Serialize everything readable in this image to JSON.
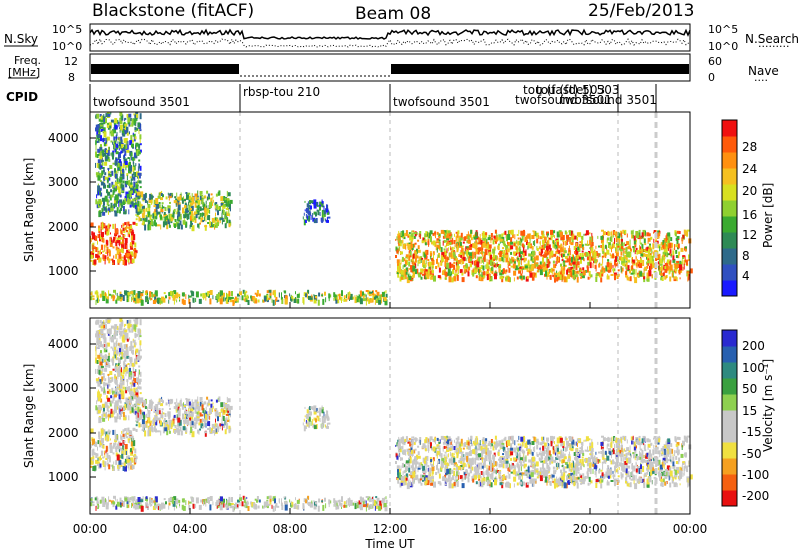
{
  "header": {
    "station": "Blackstone (fitACF)",
    "beam": "Beam 08",
    "date": "25/Feb/2013"
  },
  "strip_labels": {
    "nsky": "N.Sky",
    "nsearch": "N.Search",
    "nsearch_dots": "·········",
    "freq_line1": "Freq.",
    "freq_line2": "[MHz]",
    "nave": "Nave",
    "nave_dots": "····",
    "cpid": "CPID",
    "nsky_ticks": [
      "10^5",
      "10^0"
    ],
    "nsearch_ticks": [
      "10^5",
      "10^0"
    ],
    "freq_ticks": [
      "12",
      "8"
    ],
    "nave_ticks": [
      "60",
      "0"
    ]
  },
  "cpid_labels": [
    {
      "text": "twofsound 3501"
    },
    {
      "text": "rbsp-tou 210"
    },
    {
      "text": "twofsound 3501"
    },
    {
      "text": "tou (fast) 503"
    },
    {
      "text": "tou (fdet) 503"
    },
    {
      "text": "twofsound 3501"
    },
    {
      "text": "twofsound 3501"
    }
  ],
  "x_axis": {
    "label": "Time UT",
    "ticks": [
      "00:00",
      "04:00",
      "08:00",
      "12:00",
      "16:00",
      "20:00",
      "00:00"
    ]
  },
  "power_panel": {
    "ylabel": "Slant Range [km]",
    "yticks": [
      "1000",
      "2000",
      "3000",
      "4000"
    ],
    "colorbar_label": "Power [dB]",
    "colorbar_ticks": [
      "4",
      "8",
      "12",
      "16",
      "20",
      "24",
      "28"
    ],
    "colors": [
      "#1a1aff",
      "#3050c0",
      "#2e6a8a",
      "#2e8a55",
      "#3aaa30",
      "#8fd030",
      "#d8e020",
      "#f5c020",
      "#ff9010",
      "#ff5a0a",
      "#f01010"
    ]
  },
  "velocity_panel": {
    "ylabel": "Slant Range [km]",
    "yticks": [
      "1000",
      "2000",
      "3000",
      "4000"
    ],
    "colorbar_label": "Velocity [m s⁻¹]",
    "colorbar_ticks": [
      "200",
      "100",
      "50",
      "15",
      "-15",
      "-50",
      "-100",
      "-200"
    ],
    "colors": [
      "#2a2ad0",
      "#2860b0",
      "#2e8a80",
      "#3aa040",
      "#8ed050",
      "#c8c8c8",
      "#c8c8c8",
      "#f0e040",
      "#f5a020",
      "#f56010",
      "#e81010"
    ]
  },
  "chart_data": {
    "type": "heatmap",
    "title": "Blackstone (fitACF)",
    "subtitle": "Beam 08",
    "date": "25/Feb/2013",
    "xlabel": "Time UT",
    "ylabel": "Slant Range [km]",
    "xlim_hours": [
      0,
      24
    ],
    "ylim_km": [
      0,
      4500
    ],
    "x": [
      "00:00",
      "04:00",
      "08:00",
      "12:00",
      "16:00",
      "20:00",
      "00:00"
    ],
    "cpid_segments": [
      {
        "start_h": 0.0,
        "end_h": 6.0,
        "label": "twofsound 3501"
      },
      {
        "start_h": 6.0,
        "end_h": 12.0,
        "label": "rbsp-tou 210"
      },
      {
        "start_h": 12.0,
        "end_h": 24.0,
        "label": "twofsound 3501"
      }
    ],
    "scatter_regions": [
      {
        "t_start_h": 0.0,
        "t_end_h": 1.8,
        "range_start_km": 1100,
        "range_end_km": 2000,
        "power_db": 24,
        "velocity_ms": -10
      },
      {
        "t_start_h": 0.2,
        "t_end_h": 2.0,
        "range_start_km": 2200,
        "range_end_km": 4500,
        "power_db": 10,
        "velocity_ms": 5
      },
      {
        "t_start_h": 1.8,
        "t_end_h": 5.6,
        "range_start_km": 1900,
        "range_end_km": 2700,
        "power_db": 14,
        "velocity_ms": 0
      },
      {
        "t_start_h": 0.0,
        "t_end_h": 11.9,
        "range_start_km": 180,
        "range_end_km": 420,
        "power_db": 16,
        "velocity_ms": 40
      },
      {
        "t_start_h": 8.5,
        "t_end_h": 9.5,
        "range_start_km": 2000,
        "range_end_km": 2500,
        "power_db": 6,
        "velocity_ms": 20
      },
      {
        "t_start_h": 12.2,
        "t_end_h": 24.0,
        "range_start_km": 700,
        "range_end_km": 1800,
        "power_db": 20,
        "velocity_ms": -10
      }
    ],
    "power_colorbar": {
      "label": "Power [dB]",
      "ticks": [
        4,
        8,
        12,
        16,
        20,
        24,
        28
      ]
    },
    "velocity_colorbar": {
      "label": "Velocity [m s⁻¹]",
      "ticks": [
        200,
        100,
        50,
        15,
        -15,
        -50,
        -100,
        -200
      ]
    }
  }
}
